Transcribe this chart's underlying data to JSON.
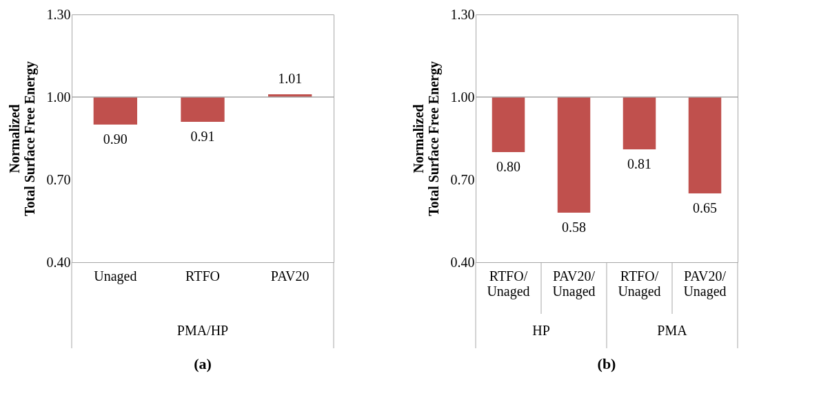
{
  "chart_data": [
    {
      "type": "bar",
      "title": "(a)",
      "ylabel": "Normalized\nTotal Surface Free Energy",
      "categories": [
        "Unaged",
        "RTFO",
        "PAV20"
      ],
      "base": [
        1.0,
        1.0,
        1.0
      ],
      "values": [
        -0.1,
        -0.09,
        0.01
      ],
      "value_labels": [
        "0.90",
        "0.91",
        "1.01"
      ],
      "color": "#c0504d",
      "ylim": [
        0.4,
        1.3
      ],
      "yticks": [
        {
          "value": 0.4,
          "label": "0.40"
        },
        {
          "value": 0.7,
          "label": "0.70"
        },
        {
          "value": 1.0,
          "label": "1.00"
        },
        {
          "value": 1.3,
          "label": "1.30"
        }
      ],
      "ref_lines": [
        {
          "axis": "y",
          "value": 1.0,
          "color": "#a6a6a6"
        }
      ],
      "annotations": [
        "PMA/HP"
      ]
    },
    {
      "type": "bar",
      "title": "(b)",
      "ylabel": "Normalized\nTotal Surface Free Energy",
      "categories": [
        "RTFO/\nUnaged",
        "PAV20/\nUnaged",
        "RTFO/\nUnaged",
        "PAV20/\nUnaged"
      ],
      "base": [
        1.0,
        1.0,
        1.0,
        1.0
      ],
      "values": [
        -0.2,
        -0.42,
        -0.19,
        -0.35
      ],
      "value_labels": [
        "0.80",
        "0.58",
        "0.81",
        "0.65"
      ],
      "color": "#c0504d",
      "ylim": [
        0.4,
        1.3
      ],
      "yticks": [
        {
          "value": 0.4,
          "label": "0.40"
        },
        {
          "value": 0.7,
          "label": "0.70"
        },
        {
          "value": 1.0,
          "label": "1.00"
        },
        {
          "value": 1.3,
          "label": "1.30"
        }
      ],
      "ref_lines": [
        {
          "axis": "y",
          "value": 1.0,
          "color": "#a6a6a6"
        }
      ],
      "annotations": [
        "HP",
        "PMA"
      ]
    }
  ]
}
